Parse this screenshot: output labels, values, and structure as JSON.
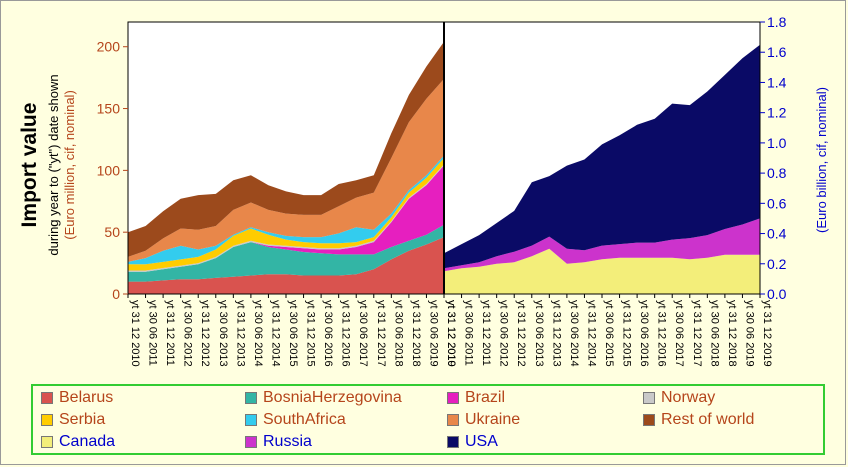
{
  "chart_data": {
    "type": "area",
    "stacked": true,
    "y_title": "Import value",
    "y_subtitle": "during year to (\"yt\") date shown",
    "left_axis_unit": "(Euro million,  cif, nominal)",
    "right_axis_unit": "(Euro billion,  cif, nominal)",
    "left_panel": {
      "ylim": [
        0,
        220
      ],
      "yticks": [
        "0",
        "50",
        "100",
        "150",
        "200"
      ],
      "dates": [
        "yt 31 12 2010",
        "yt 30 06 2011",
        "yt 31 12 2011",
        "yt 30 06 2012",
        "yt 31 12 2012",
        "yt 30 06 2013",
        "yt 31 12 2013",
        "yt 30 06 2014",
        "yt 31 12 2014",
        "yt 30 06 2015",
        "yt 31 12 2015",
        "yt 30 06 2016",
        "yt 31 12 2016",
        "yt 30 06 2017",
        "yt 31 12 2017",
        "yt 30 06 2018",
        "yt 31 12 2018",
        "yt 30 06 2019",
        "yt 31 12 2019"
      ],
      "series": [
        {
          "name": "Belarus",
          "color": "#d9534f",
          "values": [
            10,
            10,
            11,
            12,
            12,
            13,
            14,
            15,
            16,
            16,
            15,
            15,
            15,
            16,
            20,
            28,
            35,
            40,
            46
          ]
        },
        {
          "name": "BosniaHerzegovina",
          "color": "#33b5a5",
          "values": [
            8,
            8,
            9,
            10,
            12,
            16,
            24,
            27,
            22,
            20,
            19,
            18,
            17,
            16,
            12,
            10,
            8,
            8,
            10
          ]
        },
        {
          "name": "Brazil",
          "color": "#e61fbf",
          "values": [
            0,
            0,
            0,
            0,
            0,
            0,
            0,
            0,
            1,
            2,
            3,
            3,
            4,
            6,
            10,
            20,
            34,
            40,
            48
          ]
        },
        {
          "name": "Norway",
          "color": "#c9c9c9",
          "values": [
            1,
            1,
            1,
            1,
            1,
            1,
            1,
            1,
            1,
            1,
            1,
            1,
            1,
            1,
            1,
            1,
            1,
            1,
            1
          ]
        },
        {
          "name": "Serbia",
          "color": "#ffcc00",
          "values": [
            5,
            5,
            5,
            5,
            5,
            6,
            8,
            10,
            8,
            5,
            4,
            4,
            4,
            3,
            3,
            3,
            4,
            5,
            5
          ]
        },
        {
          "name": "SouthAfrica",
          "color": "#33ccee",
          "values": [
            2,
            5,
            9,
            11,
            6,
            3,
            1,
            1,
            2,
            3,
            4,
            5,
            8,
            12,
            6,
            3,
            2,
            2,
            2
          ]
        },
        {
          "name": "Ukraine",
          "color": "#e8874a",
          "values": [
            4,
            6,
            10,
            14,
            16,
            16,
            20,
            20,
            18,
            18,
            18,
            18,
            22,
            24,
            30,
            45,
            55,
            62,
            62
          ]
        },
        {
          "name": "Rest of world",
          "color": "#9c4a1c",
          "values": [
            20,
            20,
            22,
            24,
            28,
            26,
            24,
            22,
            20,
            18,
            16,
            16,
            18,
            14,
            14,
            20,
            22,
            26,
            30
          ]
        }
      ]
    },
    "right_panel": {
      "ylim": [
        0,
        1.8
      ],
      "yticks": [
        "0.0",
        "0.2",
        "0.4",
        "0.6",
        "0.8",
        "1.0",
        "1.2",
        "1.4",
        "1.6",
        "1.8"
      ],
      "dates": [
        "yt 31 12 2010",
        "yt 30 06 2011",
        "yt 31 12 2011",
        "yt 30 06 2012",
        "yt 31 12 2012",
        "yt 30 06 2013",
        "yt 31 12 2013",
        "yt 30 06 2014",
        "yt 31 12 2014",
        "yt 30 06 2015",
        "yt 31 12 2015",
        "yt 30 06 2016",
        "yt 31 12 2016",
        "yt 30 06 2017",
        "yt 31 12 2017",
        "yt 30 06 2018",
        "yt 31 12 2018",
        "yt 30 06 2019",
        "yt 31 12 2019"
      ],
      "series": [
        {
          "name": "Canada",
          "color": "#f3ee7a",
          "values": [
            0.15,
            0.17,
            0.18,
            0.2,
            0.21,
            0.25,
            0.3,
            0.2,
            0.21,
            0.23,
            0.24,
            0.24,
            0.24,
            0.24,
            0.23,
            0.24,
            0.26,
            0.26,
            0.26
          ]
        },
        {
          "name": "Russia",
          "color": "#cc33cc",
          "values": [
            0.02,
            0.02,
            0.03,
            0.05,
            0.07,
            0.07,
            0.08,
            0.1,
            0.08,
            0.09,
            0.09,
            0.1,
            0.1,
            0.12,
            0.14,
            0.15,
            0.17,
            0.2,
            0.24
          ]
        },
        {
          "name": "USA",
          "color": "#0a0a66",
          "values": [
            0.1,
            0.14,
            0.18,
            0.22,
            0.27,
            0.42,
            0.4,
            0.55,
            0.6,
            0.67,
            0.72,
            0.78,
            0.82,
            0.9,
            0.88,
            0.95,
            1.02,
            1.1,
            1.15
          ]
        }
      ]
    }
  },
  "legend": {
    "items": [
      {
        "name": "Belarus",
        "color": "#d9534f",
        "side": "left"
      },
      {
        "name": "BosniaHerzegovina",
        "color": "#33b5a5",
        "side": "left"
      },
      {
        "name": "Brazil",
        "color": "#e61fbf",
        "side": "left"
      },
      {
        "name": "Norway",
        "color": "#c9c9c9",
        "side": "left"
      },
      {
        "name": "Serbia",
        "color": "#ffcc00",
        "side": "left"
      },
      {
        "name": "SouthAfrica",
        "color": "#33ccee",
        "side": "left"
      },
      {
        "name": "Ukraine",
        "color": "#e8874a",
        "side": "left"
      },
      {
        "name": "Rest of world",
        "color": "#9c4a1c",
        "side": "left"
      },
      {
        "name": "Canada",
        "color": "#f3ee7a",
        "side": "right"
      },
      {
        "name": "Russia",
        "color": "#cc33cc",
        "side": "right"
      },
      {
        "name": "USA",
        "color": "#0a0a66",
        "side": "right"
      }
    ]
  }
}
